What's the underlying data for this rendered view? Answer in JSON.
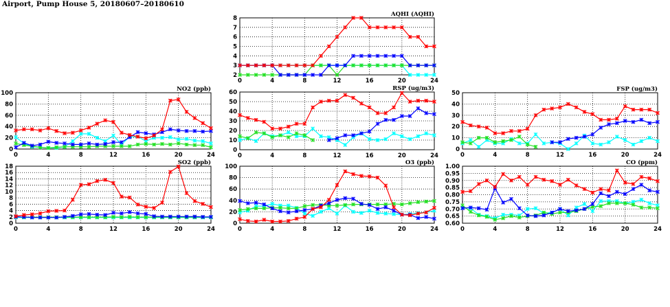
{
  "title": "Airport, Pump House 5, 20180607–20180610",
  "colors": {
    "red": "#ff0000",
    "blue": "#0000ff",
    "green": "#22e022",
    "cyan": "#00ffff"
  },
  "chart_data": [
    {
      "type": "line",
      "title": "AQHI (AQHI)",
      "x": [
        0,
        1,
        2,
        3,
        4,
        5,
        6,
        7,
        8,
        9,
        10,
        11,
        12,
        13,
        14,
        15,
        16,
        17,
        18,
        19,
        20,
        21,
        22,
        23,
        24
      ],
      "xticks": [
        0,
        4,
        8,
        12,
        16,
        20,
        24
      ],
      "ylim": [
        2,
        8
      ],
      "yticks": [
        2,
        3,
        4,
        5,
        6,
        7,
        8
      ],
      "grid": true,
      "series": [
        {
          "name": "cyan",
          "values": [
            3,
            3,
            3,
            3,
            3,
            3,
            3,
            3,
            3,
            3,
            3,
            3,
            3,
            3,
            3,
            3,
            3,
            3,
            3,
            3,
            3,
            2,
            2,
            2,
            2
          ]
        },
        {
          "name": "green",
          "values": [
            2,
            2,
            2,
            2,
            2,
            2,
            2,
            2,
            2,
            3,
            3,
            3,
            2,
            3,
            3,
            3,
            3,
            3,
            3,
            3,
            3,
            3,
            3,
            3,
            3
          ]
        },
        {
          "name": "blue",
          "values": [
            3,
            3,
            3,
            3,
            3,
            2,
            2,
            2,
            2,
            2,
            2,
            3,
            3,
            3,
            4,
            4,
            4,
            4,
            4,
            4,
            4,
            3,
            3,
            3,
            3
          ]
        },
        {
          "name": "red",
          "values": [
            3,
            3,
            3,
            3,
            3,
            3,
            3,
            3,
            3,
            3,
            4,
            5,
            6,
            7,
            8,
            8,
            7,
            7,
            7,
            7,
            7,
            6,
            6,
            5,
            5
          ]
        }
      ]
    },
    {
      "type": "line",
      "title": "NO2 (ppb)",
      "x": [
        0,
        1,
        2,
        3,
        4,
        5,
        6,
        7,
        8,
        9,
        10,
        11,
        12,
        13,
        14,
        15,
        16,
        17,
        18,
        19,
        20,
        21,
        22,
        23,
        24
      ],
      "xticks": [
        0,
        4,
        8,
        12,
        16,
        20,
        24
      ],
      "ylim": [
        0,
        100
      ],
      "yticks": [
        0,
        20,
        40,
        60,
        80,
        100
      ],
      "grid": true,
      "series": [
        {
          "name": "cyan",
          "values": [
            21,
            10,
            4,
            3,
            2,
            2,
            4,
            14,
            27,
            27,
            20,
            14,
            24,
            8,
            22,
            22,
            14,
            20,
            20,
            21,
            17,
            18,
            15,
            14,
            10
          ]
        },
        {
          "name": "green",
          "values": [
            10,
            7,
            5,
            3,
            2,
            3,
            4,
            4,
            4,
            4,
            5,
            5,
            5,
            5,
            5,
            8,
            9,
            8,
            9,
            8,
            10,
            8,
            7,
            7,
            3
          ]
        },
        {
          "name": "blue",
          "values": [
            3,
            11,
            6,
            8,
            13,
            11,
            10,
            8,
            8,
            10,
            8,
            9,
            12,
            12,
            21,
            30,
            28,
            26,
            30,
            35,
            33,
            32,
            32,
            31,
            32
          ]
        },
        {
          "name": "red",
          "values": [
            33,
            35,
            35,
            33,
            37,
            32,
            28,
            29,
            33,
            38,
            45,
            51,
            48,
            29,
            25,
            22,
            19,
            24,
            35,
            86,
            88,
            66,
            55,
            46,
            37
          ]
        }
      ]
    },
    {
      "type": "line",
      "title": "RSP (ug/m3)",
      "x": [
        0,
        1,
        2,
        3,
        4,
        5,
        6,
        7,
        8,
        9,
        10,
        11,
        12,
        13,
        14,
        15,
        16,
        17,
        18,
        19,
        20,
        21,
        22,
        23,
        24
      ],
      "xticks": [
        0,
        4,
        8,
        12,
        16,
        20,
        24
      ],
      "ylim": [
        0,
        60
      ],
      "yticks": [
        0,
        10,
        20,
        30,
        40,
        50,
        60
      ],
      "grid": true,
      "series": [
        {
          "name": "cyan",
          "values": [
            10,
            12,
            9,
            17,
            14,
            15,
            18,
            14,
            14,
            22,
            14,
            13,
            10,
            5,
            13,
            17,
            11,
            10,
            11,
            17,
            14,
            11,
            14,
            17,
            15
          ]
        },
        {
          "name": "green",
          "values": [
            14,
            12,
            18,
            17,
            13,
            15,
            13,
            17,
            15,
            10,
            null,
            null,
            null,
            null,
            null,
            null,
            null,
            null,
            null,
            null,
            null,
            null,
            null,
            null,
            null
          ]
        },
        {
          "name": "blue",
          "values": [
            null,
            null,
            null,
            null,
            null,
            null,
            null,
            null,
            null,
            null,
            null,
            10,
            12,
            15,
            15,
            17,
            19,
            27,
            31,
            31,
            35,
            35,
            43,
            38,
            37
          ]
        },
        {
          "name": "red",
          "values": [
            36,
            33,
            31,
            29,
            22,
            22,
            24,
            27,
            27,
            44,
            50,
            51,
            51,
            57,
            54,
            48,
            44,
            38,
            38,
            44,
            59,
            50,
            51,
            51,
            50
          ]
        }
      ]
    },
    {
      "type": "line",
      "title": "FSP (ug/m3)",
      "x": [
        0,
        1,
        2,
        3,
        4,
        5,
        6,
        7,
        8,
        9,
        10,
        11,
        12,
        13,
        14,
        15,
        16,
        17,
        18,
        19,
        20,
        21,
        22,
        23,
        24
      ],
      "xticks": [
        0,
        4,
        8,
        12,
        16,
        20,
        24
      ],
      "ylim": [
        0,
        50
      ],
      "yticks": [
        0,
        10,
        20,
        30,
        40,
        50
      ],
      "grid": true,
      "series": [
        {
          "name": "cyan",
          "values": [
            5,
            8,
            2,
            8,
            5,
            5,
            9,
            5,
            5,
            13,
            5,
            6,
            5,
            0,
            5,
            12,
            5,
            4,
            6,
            11,
            8,
            4,
            7,
            10,
            7
          ]
        },
        {
          "name": "green",
          "values": [
            6,
            5,
            10,
            10,
            6,
            7,
            8,
            11,
            4,
            2,
            null,
            null,
            null,
            null,
            null,
            null,
            null,
            null,
            null,
            null,
            null,
            null,
            null,
            null,
            null
          ]
        },
        {
          "name": "blue",
          "values": [
            null,
            null,
            null,
            null,
            null,
            null,
            null,
            null,
            null,
            null,
            null,
            6,
            6,
            9,
            10,
            11,
            13,
            19,
            22,
            23,
            25,
            24,
            26,
            23,
            24
          ]
        },
        {
          "name": "red",
          "values": [
            24,
            21,
            20,
            19,
            14,
            14,
            16,
            16,
            18,
            30,
            35,
            36,
            37,
            40,
            37,
            33,
            31,
            26,
            26,
            27,
            38,
            35,
            35,
            35,
            32
          ]
        }
      ]
    },
    {
      "type": "line",
      "title": "SO2 (ppb)",
      "x": [
        0,
        1,
        2,
        3,
        4,
        5,
        6,
        7,
        8,
        9,
        10,
        11,
        12,
        13,
        14,
        15,
        16,
        17,
        18,
        19,
        20,
        21,
        22,
        23,
        24
      ],
      "xticks": [
        0,
        4,
        8,
        12,
        16,
        20,
        24
      ],
      "ylim": [
        0,
        18
      ],
      "yticks": [
        0,
        2,
        4,
        6,
        8,
        10,
        12,
        14,
        16,
        18
      ],
      "grid": true,
      "series": [
        {
          "name": "cyan",
          "values": [
            1.8,
            1.8,
            1.8,
            1.8,
            1.8,
            1.8,
            1.8,
            1.8,
            1.8,
            1.8,
            1.8,
            1.8,
            1.8,
            1.8,
            1.8,
            1.8,
            1.8,
            1.8,
            1.8,
            1.8,
            1.8,
            1.8,
            1.8,
            1.8,
            1.8
          ]
        },
        {
          "name": "green",
          "values": [
            2,
            1.9,
            1.9,
            1.9,
            1.9,
            1.9,
            1.9,
            1.9,
            1.9,
            1.9,
            1.9,
            1.9,
            2,
            1.9,
            2,
            1.9,
            1.9,
            1.9,
            1.9,
            1.9,
            1.9,
            1.9,
            1.9,
            1.9,
            1.9
          ]
        },
        {
          "name": "blue",
          "values": [
            2,
            2,
            1.8,
            1.8,
            1.8,
            1.8,
            2,
            2.3,
            2.8,
            2.9,
            2.7,
            2.6,
            3.3,
            3.1,
            3.5,
            3.1,
            2.9,
            2.2,
            2.1,
            2.1,
            2.1,
            2.1,
            2.1,
            2,
            2
          ]
        },
        {
          "name": "red",
          "values": [
            2.2,
            2.6,
            2.8,
            3.1,
            3.8,
            3.9,
            4,
            7.4,
            12.1,
            12.3,
            13.3,
            13.7,
            12.7,
            8.4,
            8.1,
            5.9,
            5.2,
            4.8,
            6.5,
            16.2,
            17.9,
            9.5,
            7,
            6.1,
            5.1
          ]
        }
      ]
    },
    {
      "type": "line",
      "title": "O3 (ppb)",
      "x": [
        0,
        1,
        2,
        3,
        4,
        5,
        6,
        7,
        8,
        9,
        10,
        11,
        12,
        13,
        14,
        15,
        16,
        17,
        18,
        19,
        20,
        21,
        22,
        23,
        24
      ],
      "xticks": [
        0,
        4,
        8,
        12,
        16,
        20,
        24
      ],
      "ylim": [
        0,
        100
      ],
      "yticks": [
        0,
        20,
        40,
        60,
        80,
        100
      ],
      "grid": true,
      "series": [
        {
          "name": "cyan",
          "values": [
            19,
            22,
            30,
            30,
            34,
            31,
            31,
            27,
            17,
            13,
            20,
            26,
            17,
            31,
            20,
            18,
            22,
            18,
            17,
            16,
            15,
            16,
            18,
            19,
            22
          ]
        },
        {
          "name": "green",
          "values": [
            23,
            25,
            26,
            26,
            27,
            27,
            26,
            26,
            30,
            32,
            32,
            31,
            31,
            32,
            33,
            33,
            33,
            33,
            33,
            34,
            33,
            35,
            37,
            38,
            39
          ]
        },
        {
          "name": "blue",
          "values": [
            39,
            35,
            36,
            33,
            26,
            21,
            19,
            21,
            23,
            25,
            31,
            35,
            41,
            44,
            43,
            34,
            32,
            25,
            28,
            22,
            15,
            15,
            9,
            11,
            8
          ]
        },
        {
          "name": "red",
          "values": [
            7,
            4,
            3,
            6,
            3,
            3,
            4,
            8,
            11,
            25,
            28,
            41,
            67,
            91,
            86,
            83,
            82,
            80,
            66,
            28,
            15,
            14,
            17,
            19,
            27
          ]
        }
      ]
    },
    {
      "type": "line",
      "title": "CO (ppm)",
      "x": [
        0,
        1,
        2,
        3,
        4,
        5,
        6,
        7,
        8,
        9,
        10,
        11,
        12,
        13,
        14,
        15,
        16,
        17,
        18,
        19,
        20,
        21,
        22,
        23,
        24
      ],
      "xticks": [
        0,
        4,
        8,
        12,
        16,
        20,
        24
      ],
      "ylim": [
        0.6,
        1.0
      ],
      "yticks": [
        "0.60",
        "0.65",
        "0.70",
        "0.75",
        "0.80",
        "0.85",
        "0.90",
        "0.95",
        "1.00"
      ],
      "grid": true,
      "series": [
        {
          "name": "cyan",
          "values": [
            0.71,
            0.705,
            0.66,
            0.65,
            0.635,
            0.66,
            0.66,
            0.655,
            0.7,
            0.705,
            0.67,
            0.675,
            0.7,
            0.655,
            0.71,
            0.735,
            0.685,
            0.755,
            0.755,
            0.755,
            0.74,
            0.75,
            0.765,
            0.74,
            0.725
          ]
        },
        {
          "name": "green",
          "values": [
            0.725,
            0.68,
            0.655,
            0.645,
            0.625,
            0.635,
            0.65,
            0.64,
            0.65,
            0.655,
            0.675,
            0.665,
            0.675,
            0.675,
            0.685,
            0.7,
            0.715,
            0.72,
            0.74,
            0.74,
            0.74,
            0.73,
            0.71,
            0.71,
            0.705
          ]
        },
        {
          "name": "blue",
          "values": [
            0.705,
            0.71,
            0.705,
            0.695,
            0.845,
            0.745,
            0.77,
            0.705,
            0.655,
            0.65,
            0.655,
            0.675,
            0.7,
            0.685,
            0.69,
            0.7,
            0.735,
            0.81,
            0.79,
            0.82,
            0.805,
            0.84,
            0.87,
            0.83,
            0.82
          ]
        },
        {
          "name": "red",
          "values": [
            0.82,
            0.825,
            0.875,
            0.9,
            0.855,
            0.945,
            0.9,
            0.925,
            0.87,
            0.925,
            0.905,
            0.895,
            0.87,
            0.905,
            0.865,
            0.84,
            0.815,
            0.84,
            0.83,
            0.97,
            0.885,
            0.875,
            0.925,
            0.915,
            0.895
          ]
        }
      ]
    }
  ]
}
